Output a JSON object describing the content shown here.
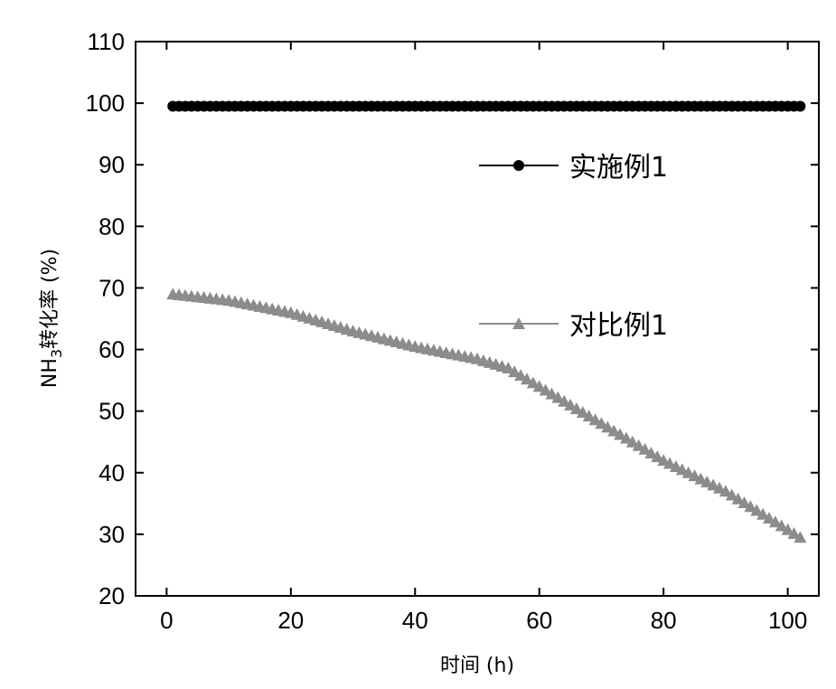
{
  "chart_data": {
    "type": "line",
    "title": "",
    "xlabel": "时间 (h)",
    "ylabel_main": "NH",
    "ylabel_sub": "3",
    "ylabel_rest": "转化率 (%)",
    "xlim": [
      -5,
      105
    ],
    "ylim": [
      20,
      110
    ],
    "x_ticks": [
      0,
      20,
      40,
      60,
      80,
      100
    ],
    "y_ticks": [
      20,
      30,
      40,
      50,
      60,
      70,
      80,
      90,
      100,
      110
    ],
    "grid": false,
    "legend_placement": "right",
    "series": [
      {
        "name": "实施例1",
        "marker": "circle",
        "color": "#000000",
        "x_start": 1,
        "x_end": 102,
        "x_step": 1,
        "anchors_x": [
          1,
          102
        ],
        "anchors_y": [
          99.5,
          99.5
        ]
      },
      {
        "name": "对比例1",
        "marker": "triangle",
        "color": "#8c8c8c",
        "x_start": 1,
        "x_end": 102,
        "x_step": 1,
        "anchors_x": [
          1,
          10,
          20,
          30,
          40,
          50,
          55,
          60,
          70,
          80,
          90,
          102
        ],
        "anchors_y": [
          69,
          68,
          66,
          63,
          60.5,
          58.5,
          57,
          54,
          48,
          42,
          37,
          29.5
        ]
      }
    ]
  }
}
